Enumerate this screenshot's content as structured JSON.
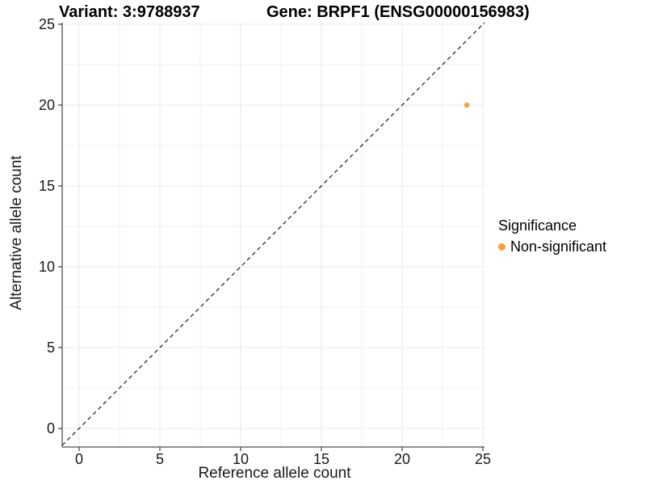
{
  "chart_data": {
    "type": "scatter",
    "titles": {
      "left": "Variant: 3:9788937",
      "right": "Gene: BRPF1 (ENSG00000156983)"
    },
    "xlabel": "Reference allele count",
    "ylabel": "Alternative allele count",
    "xlim": [
      -1.05,
      25.1
    ],
    "ylim": [
      -1.15,
      25.1
    ],
    "xticks": [
      0,
      5,
      10,
      15,
      20,
      25
    ],
    "yticks": [
      0,
      5,
      10,
      15,
      20,
      25
    ],
    "minor_step": 2.5,
    "grid": true,
    "legend_position": "right",
    "identity_line": {
      "equation": "y = x",
      "style": "dashed",
      "color": "#1a1a1a"
    },
    "series": [
      {
        "name": "Non-significant",
        "color": "#F9A03C",
        "points": [
          {
            "x": 24,
            "y": 20
          }
        ]
      }
    ],
    "legend": {
      "title": "Significance",
      "items": [
        {
          "label": "Non-significant",
          "color": "#F9A03C"
        }
      ]
    },
    "colors": {
      "background": "#FFFFFF",
      "grid_major": "#E8E8E8",
      "grid_minor": "#F2F2F2",
      "axis_line": "#4D4D4D",
      "tick_text": "#1A1A1A"
    }
  }
}
